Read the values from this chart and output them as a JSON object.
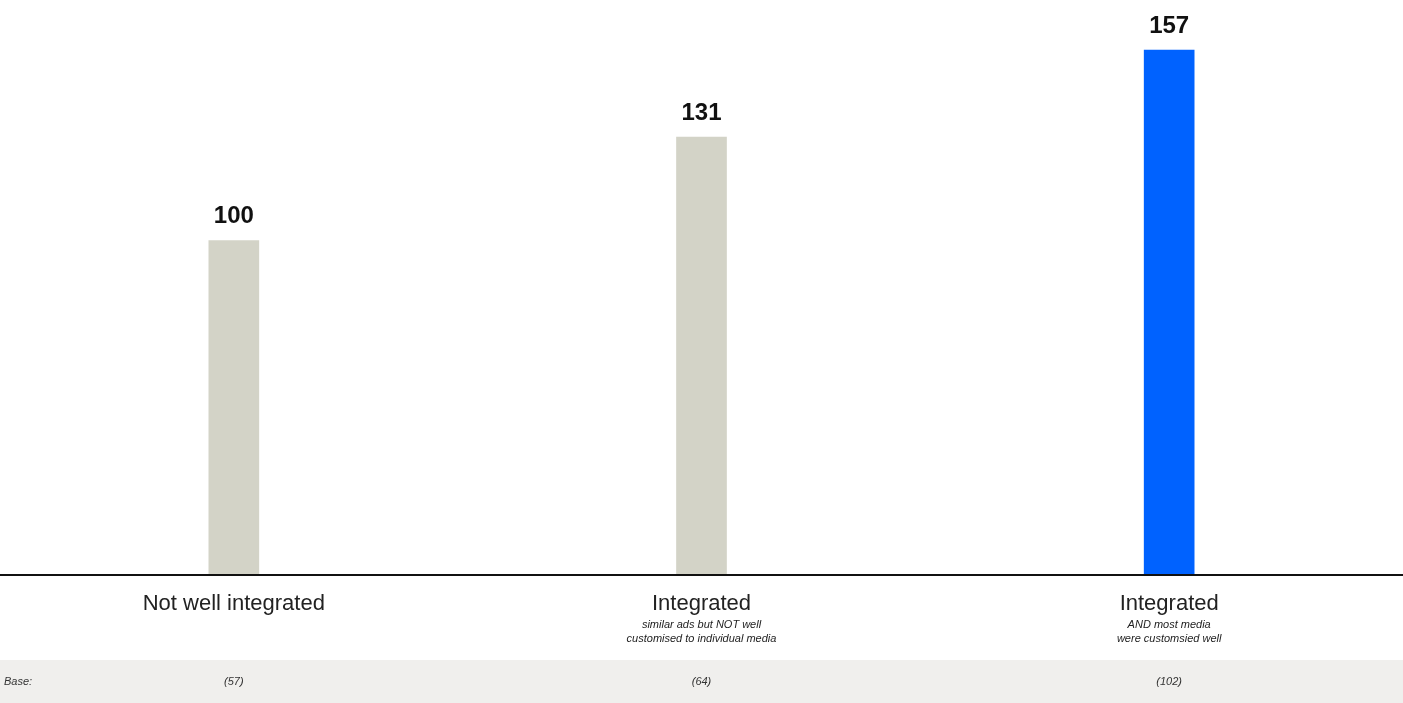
{
  "chart_data": {
    "type": "bar",
    "categories": [
      "Not well integrated",
      "Integrated\nsimilar ads but NOT well\ncustomised to individual media",
      "Integrated\nAND most media\nwere customsied well"
    ],
    "values": [
      100,
      131,
      157
    ],
    "colors": [
      "#d3d3c7",
      "#d3d3c7",
      "#0062ff"
    ],
    "data_labels": true,
    "grid": false,
    "legend": false,
    "annotations": [
      "Base:",
      "(57)",
      "(64)",
      "(102)"
    ]
  }
}
